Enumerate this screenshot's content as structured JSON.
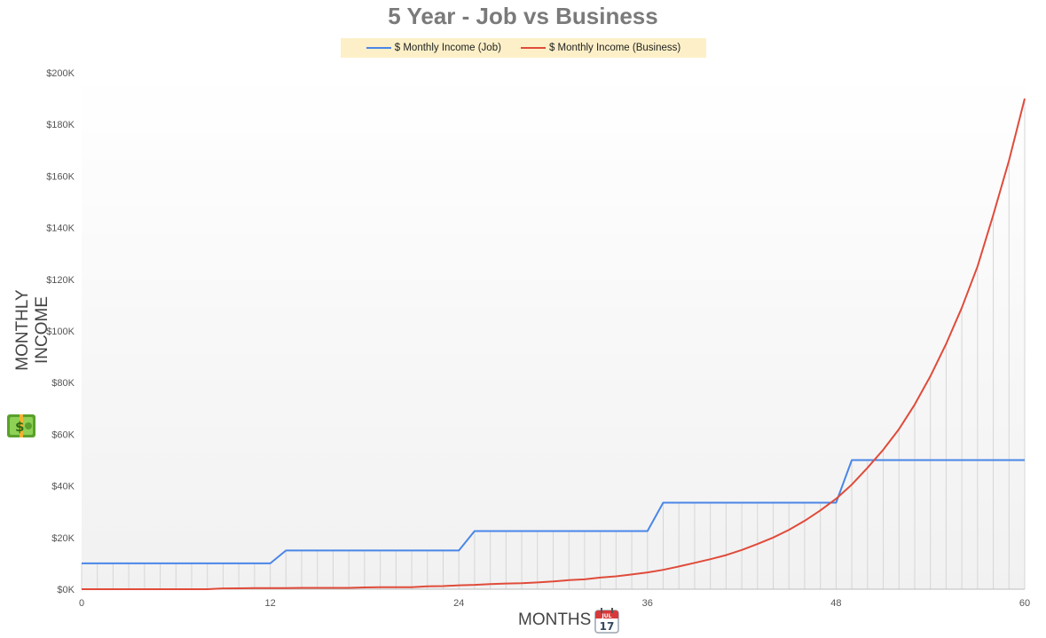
{
  "chart_data": {
    "type": "line",
    "title": "5 Year - Job vs Business",
    "xlabel": "MONTHS",
    "ylabel": "MONTHLY INCOME",
    "xlim": [
      0,
      60
    ],
    "ylim": [
      0,
      200000
    ],
    "x_ticks": [
      0,
      12,
      24,
      36,
      48,
      60
    ],
    "y_ticks": [
      0,
      20000,
      40000,
      60000,
      80000,
      100000,
      120000,
      140000,
      160000,
      180000,
      200000
    ],
    "y_tick_labels": [
      "$0K",
      "$20K",
      "$40K",
      "$60K",
      "$80K",
      "$100K",
      "$120K",
      "$140K",
      "$160K",
      "$180K",
      "$200K"
    ],
    "grid": "vertical lines at each month",
    "legend_position": "top-center",
    "series": [
      {
        "name": "$ Monthly Income (Job)",
        "color": "#4a86e8",
        "x": [
          0,
          12,
          13,
          24,
          25,
          36,
          37,
          48,
          49,
          60
        ],
        "y": [
          10000,
          10000,
          15000,
          15000,
          22500,
          22500,
          33500,
          33500,
          50000,
          50000
        ]
      },
      {
        "name": "$ Monthly Income (Business)",
        "color": "#e04b3a",
        "x": [
          0,
          8,
          9,
          10,
          11,
          12,
          13,
          14,
          15,
          16,
          17,
          18,
          19,
          20,
          21,
          22,
          23,
          24,
          25,
          26,
          27,
          28,
          29,
          30,
          31,
          32,
          33,
          34,
          35,
          36,
          37,
          38,
          39,
          40,
          41,
          42,
          43,
          44,
          45,
          46,
          47,
          48,
          49,
          50,
          51,
          52,
          53,
          54,
          55,
          56,
          57,
          58,
          59,
          60
        ],
        "y": [
          0,
          0,
          300,
          350,
          400,
          450,
          450,
          500,
          500,
          500,
          500,
          700,
          800,
          800,
          800,
          1100,
          1200,
          1500,
          1700,
          2000,
          2200,
          2300,
          2600,
          3000,
          3500,
          3800,
          4500,
          5000,
          5700,
          6500,
          7500,
          8800,
          10200,
          11600,
          13200,
          15200,
          17500,
          20000,
          23000,
          26500,
          30500,
          35000,
          40500,
          47000,
          54000,
          62000,
          71500,
          82500,
          95000,
          109000,
          125000,
          145000,
          166000,
          190000
        ]
      }
    ]
  },
  "icons": {
    "y_axis_icon": "money-banknote-icon",
    "x_axis_icon": "calendar-icon"
  },
  "calendar": {
    "month": "JUL",
    "day": "17"
  }
}
